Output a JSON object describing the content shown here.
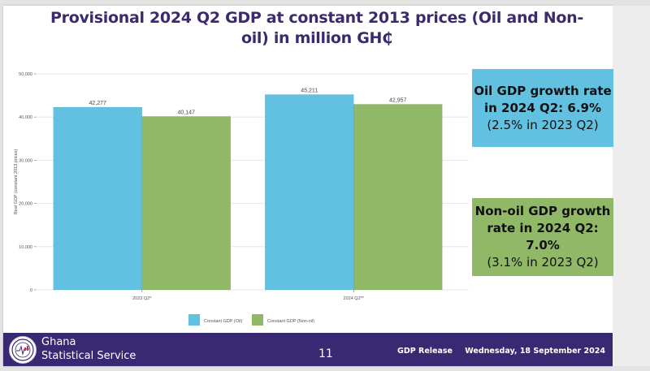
{
  "slide": {
    "title": "Provisional 2024 Q2 GDP at constant 2013 prices (Oil and Non-oil) in million GH₵",
    "callouts": {
      "oil": {
        "line1": "Oil GDP growth rate in 2024 Q2: 6.9%",
        "line2": "(2.5% in 2023 Q2)",
        "color": "#62c1e1"
      },
      "nonoil": {
        "line1": "Non-oil GDP growth rate in 2024 Q2: 7.0%",
        "line2": "(3.1% in 2023 Q2)",
        "color": "#90b867"
      }
    },
    "footer": {
      "org_line1": "Ghana",
      "org_line2": "Statistical Service",
      "page_number": "11",
      "release_label": "GDP Release",
      "release_date": "Wednesday, 18 September 2024",
      "background": "#392872"
    }
  },
  "chart_data": {
    "type": "bar",
    "title": "",
    "xlabel": "",
    "ylabel": "Real GDP (constant 2013 prices)",
    "categories": [
      "2023 Q2*",
      "2024 Q2**"
    ],
    "series": [
      {
        "name": "Constant GDP (Oil)",
        "values": [
          42277,
          45211
        ],
        "labels": [
          "42,277",
          "45,211"
        ],
        "color": "#62c1e1"
      },
      {
        "name": "Constant GDP (Non-oil)",
        "values": [
          40147,
          42957
        ],
        "labels": [
          "40,147",
          "42,957"
        ],
        "color": "#90b867"
      }
    ],
    "ylim": [
      0,
      50000
    ],
    "yticks": [
      0,
      10000,
      20000,
      30000,
      40000,
      50000
    ],
    "ytick_labels": [
      "0",
      "10,000",
      "20,000",
      "30,000",
      "40,000",
      "50,000"
    ],
    "grid": true,
    "legend": "bottom-center"
  }
}
